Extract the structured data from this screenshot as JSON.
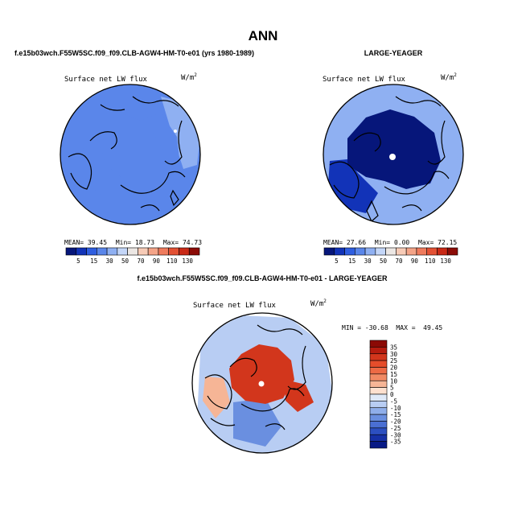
{
  "chart_data": [
    {
      "type": "heatmap",
      "projection": "north-polar-stereographic",
      "figure_title": "ANN",
      "title": "f.e15b03wch.F55W5SC.f09_f09.CLB-AGW4-HM-T0-e01 (yrs 1980-1989)",
      "variable": "Surface net LW flux",
      "units": {
        "base": "W/m",
        "exp": "2"
      },
      "stats": {
        "mean_label": "MEAN=",
        "mean": "39.45",
        "min_label": "Min=",
        "min": "18.73",
        "max_label": "Max=",
        "max": "74.73"
      },
      "colorbar_levels": [
        "5",
        "15",
        "30",
        "50",
        "70",
        "90",
        "110",
        "130"
      ],
      "colorbar_colors": [
        "#06167a",
        "#1233b8",
        "#2f5ee0",
        "#5a86ea",
        "#8fb0f2",
        "#c4d6f8",
        "#ece7e4",
        "#f7cbb7",
        "#f4a488",
        "#ef7b5d",
        "#e35134",
        "#c92a17",
        "#8c0c07"
      ],
      "regions": {
        "polar_region_value": 35,
        "land_region_value": 40,
        "outer_ring_value": 45,
        "north_atlantic_value": 60
      }
    },
    {
      "type": "heatmap",
      "projection": "north-polar-stereographic",
      "title": "LARGE-YEAGER",
      "variable": "Surface net LW flux",
      "units": {
        "base": "W/m",
        "exp": "2"
      },
      "stats": {
        "mean_label": "MEAN=",
        "mean": "27.66",
        "min_label": "Min=",
        "min": "0.00",
        "max_label": "Max=",
        "max": "72.15"
      },
      "colorbar_levels": [
        "5",
        "15",
        "30",
        "50",
        "70",
        "90",
        "110",
        "130"
      ],
      "colorbar_colors": [
        "#06167a",
        "#1233b8",
        "#2f5ee0",
        "#5a86ea",
        "#8fb0f2",
        "#c4d6f8",
        "#ece7e4",
        "#f7cbb7",
        "#f4a488",
        "#ef7b5d",
        "#e35134",
        "#c92a17",
        "#8c0c07"
      ],
      "regions": {
        "polar_region_value": 3,
        "land_region_value": 12,
        "outer_ring_value": 55,
        "north_atlantic_value": 60
      }
    },
    {
      "type": "heatmap",
      "projection": "north-polar-stereographic",
      "title": "f.e15b03wch.F55W5SC.f09_f09.CLB-AGW4-HM-T0-e01 - LARGE-YEAGER",
      "variable": "Surface net LW flux",
      "units": {
        "base": "W/m",
        "exp": "2"
      },
      "stats_text": "MIN = -30.68  MAX =  49.45",
      "colorbar_levels": [
        "35",
        "30",
        "25",
        "20",
        "15",
        "10",
        "5",
        "0",
        "-5",
        "-10",
        "-15",
        "-20",
        "-25",
        "-30",
        "-35"
      ],
      "colorbar_colors": [
        "#8b0a05",
        "#b51c0f",
        "#d2361c",
        "#e54d2b",
        "#ed6a45",
        "#f18a64",
        "#f6b596",
        "#fde0cf",
        "#dfe9f8",
        "#b8cdf3",
        "#8faeea",
        "#6a8fe0",
        "#4a6fd3",
        "#2c4fc0",
        "#1630a6",
        "#081a86"
      ],
      "regions": {
        "polar_region_value": 25,
        "land_region_value": 5,
        "outer_ring_value": -10,
        "north_atlantic_value": -20
      }
    }
  ]
}
